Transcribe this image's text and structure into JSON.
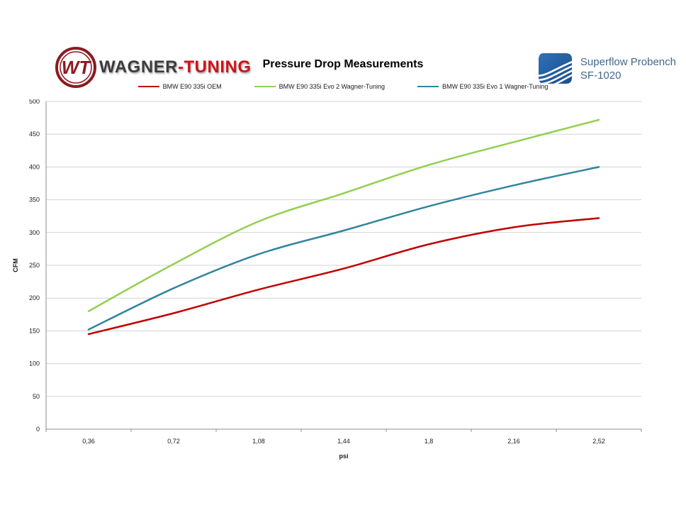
{
  "header": {
    "wagner_logo": {
      "monogram": "WT",
      "text_dark": "WAGNER",
      "text_red": "-TUNING"
    },
    "title": "Pressure Drop Measurements",
    "superflow": {
      "line1": "Superflow Probench",
      "line2": "SF-1020"
    }
  },
  "legend": [
    {
      "label": "BMW E90 335i OEM",
      "color": "#c00000"
    },
    {
      "label": "BMW E90 335i Evo 2 Wagner-Tuning",
      "color": "#92d050"
    },
    {
      "label": "BMW E90 335i Evo 1 Wagner-Tuning",
      "color": "#31859c"
    }
  ],
  "chart_data": {
    "type": "line",
    "title": "Pressure Drop Measurements",
    "xlabel": "psi",
    "ylabel": "CFM",
    "x": [
      0.36,
      0.72,
      1.08,
      1.44,
      1.8,
      2.16,
      2.52
    ],
    "x_tick_labels": [
      "0,36",
      "0,72",
      "1,08",
      "1,44",
      "1,8",
      "2,16",
      "2,52"
    ],
    "y_ticks": [
      0,
      50,
      100,
      150,
      200,
      250,
      300,
      350,
      400,
      450,
      500
    ],
    "ylim": [
      0,
      500
    ],
    "grid": "horizontal",
    "legend_position": "top",
    "series": [
      {
        "name": "BMW E90 335i OEM",
        "color": "#c00000",
        "values": [
          145,
          177,
          213,
          245,
          282,
          308,
          322
        ]
      },
      {
        "name": "BMW E90 335i Evo 2 Wagner-Tuning",
        "color": "#92d050",
        "values": [
          180,
          252,
          317,
          360,
          403,
          438,
          472
        ]
      },
      {
        "name": "BMW E90 335i Evo 1 Wagner-Tuning",
        "color": "#31859c",
        "values": [
          152,
          215,
          267,
          303,
          340,
          372,
          400
        ]
      }
    ],
    "colors": {
      "gridline": "#d3d3d3",
      "axis": "#8c8c8c",
      "tick_text": "#1a1a1a"
    }
  }
}
